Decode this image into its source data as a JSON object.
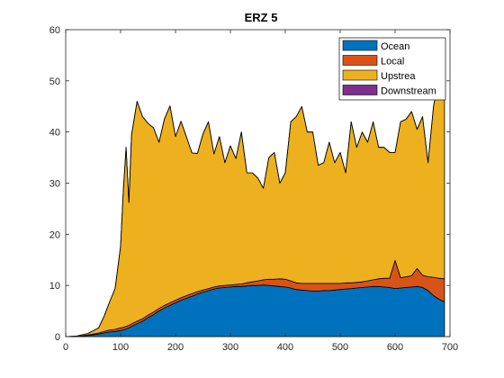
{
  "chart_data": {
    "type": "area",
    "title": "ERZ 5",
    "xlabel": "",
    "ylabel": "",
    "xlim": [
      0,
      700
    ],
    "ylim": [
      0,
      60
    ],
    "x_ticks": [
      "0",
      "100",
      "200",
      "300",
      "400",
      "500",
      "600",
      "700"
    ],
    "y_ticks": [
      "0",
      "10",
      "20",
      "30",
      "40",
      "50",
      "60"
    ],
    "grid": false,
    "legend_position": "top-right",
    "stacked": true,
    "x": [
      0,
      20,
      40,
      60,
      70,
      80,
      90,
      100,
      105,
      110,
      115,
      120,
      130,
      140,
      150,
      160,
      170,
      180,
      190,
      200,
      210,
      220,
      230,
      240,
      250,
      260,
      270,
      280,
      290,
      300,
      310,
      320,
      330,
      340,
      350,
      360,
      370,
      380,
      390,
      400,
      410,
      420,
      430,
      440,
      450,
      460,
      470,
      480,
      490,
      500,
      510,
      520,
      530,
      540,
      550,
      560,
      570,
      580,
      590,
      600,
      610,
      620,
      630,
      640,
      650,
      660,
      670,
      680,
      690
    ],
    "series": [
      {
        "name": "Ocean",
        "color": "#0072BD",
        "values": [
          0,
          0,
          0.2,
          0.5,
          0.7,
          0.9,
          1.0,
          1.2,
          1.3,
          1.5,
          1.7,
          2.0,
          2.5,
          3.0,
          3.7,
          4.3,
          5.0,
          5.6,
          6.1,
          6.6,
          7.1,
          7.5,
          7.9,
          8.3,
          8.7,
          9.0,
          9.3,
          9.5,
          9.6,
          9.7,
          9.8,
          9.8,
          9.9,
          10.0,
          10.0,
          10.1,
          10.0,
          9.9,
          9.8,
          9.7,
          9.5,
          9.2,
          9.1,
          9.0,
          8.9,
          8.9,
          9.0,
          9.0,
          9.1,
          9.2,
          9.3,
          9.4,
          9.5,
          9.6,
          9.7,
          9.8,
          9.8,
          9.7,
          9.6,
          9.4,
          9.5,
          9.6,
          9.7,
          9.8,
          9.6,
          9.0,
          8.0,
          7.3,
          6.8
        ]
      },
      {
        "name": "Local",
        "color": "#D95319",
        "values": [
          0,
          0,
          0.1,
          0.2,
          0.3,
          0.4,
          0.4,
          0.5,
          0.5,
          0.5,
          0.5,
          0.5,
          0.5,
          0.5,
          0.5,
          0.5,
          0.5,
          0.5,
          0.5,
          0.5,
          0.5,
          0.5,
          0.5,
          0.5,
          0.4,
          0.4,
          0.4,
          0.4,
          0.4,
          0.4,
          0.4,
          0.5,
          0.6,
          0.7,
          0.9,
          1.0,
          1.2,
          1.3,
          1.5,
          1.5,
          1.4,
          1.3,
          1.3,
          1.4,
          1.5,
          1.5,
          1.4,
          1.4,
          1.3,
          1.2,
          1.2,
          1.1,
          1.1,
          1.1,
          1.2,
          1.3,
          1.5,
          1.7,
          1.8,
          5.5,
          2.0,
          2.1,
          2.2,
          3.5,
          2.4,
          2.7,
          3.6,
          4.1,
          4.5
        ]
      },
      {
        "name": "Upstrea",
        "color": "#EDB120",
        "values": [
          0,
          0.1,
          0.3,
          1.0,
          3.0,
          5.5,
          8.0,
          16.0,
          27.0,
          35.0,
          24.0,
          37.0,
          43.0,
          39.5,
          37.5,
          36.0,
          32.5,
          36.5,
          38.5,
          32.0,
          34.5,
          31.0,
          27.5,
          27.0,
          30.5,
          32.6,
          26.0,
          29.2,
          24.0,
          27.2,
          24.6,
          29.7,
          21.5,
          21.3,
          20.1,
          17.9,
          23.8,
          24.8,
          18.7,
          20.8,
          31.1,
          32.5,
          34.6,
          29.6,
          29.6,
          23.1,
          23.6,
          27.6,
          23.6,
          25.6,
          21.5,
          31.5,
          26.4,
          29.3,
          27.1,
          30.9,
          25.7,
          25.6,
          24.6,
          21.1,
          30.5,
          30.8,
          32.1,
          27.2,
          31.0,
          22.3,
          33.4,
          39.6,
          39.2
        ]
      },
      {
        "name": "Downstream",
        "color": "#7E2F8E",
        "values": [
          0,
          0,
          0,
          0,
          0,
          0,
          0,
          0,
          0,
          0,
          0,
          0,
          0,
          0,
          0,
          0,
          0,
          0,
          0,
          0,
          0,
          0,
          0,
          0,
          0,
          0,
          0,
          0,
          0,
          0,
          0,
          0,
          0,
          0,
          0,
          0,
          0,
          0,
          0,
          0,
          0,
          0,
          0,
          0,
          0,
          0,
          0,
          0,
          0,
          0,
          0,
          0,
          0,
          0,
          0,
          0,
          0,
          0,
          0,
          0,
          0,
          0,
          0,
          0,
          0,
          0,
          0,
          0,
          0
        ]
      }
    ]
  }
}
